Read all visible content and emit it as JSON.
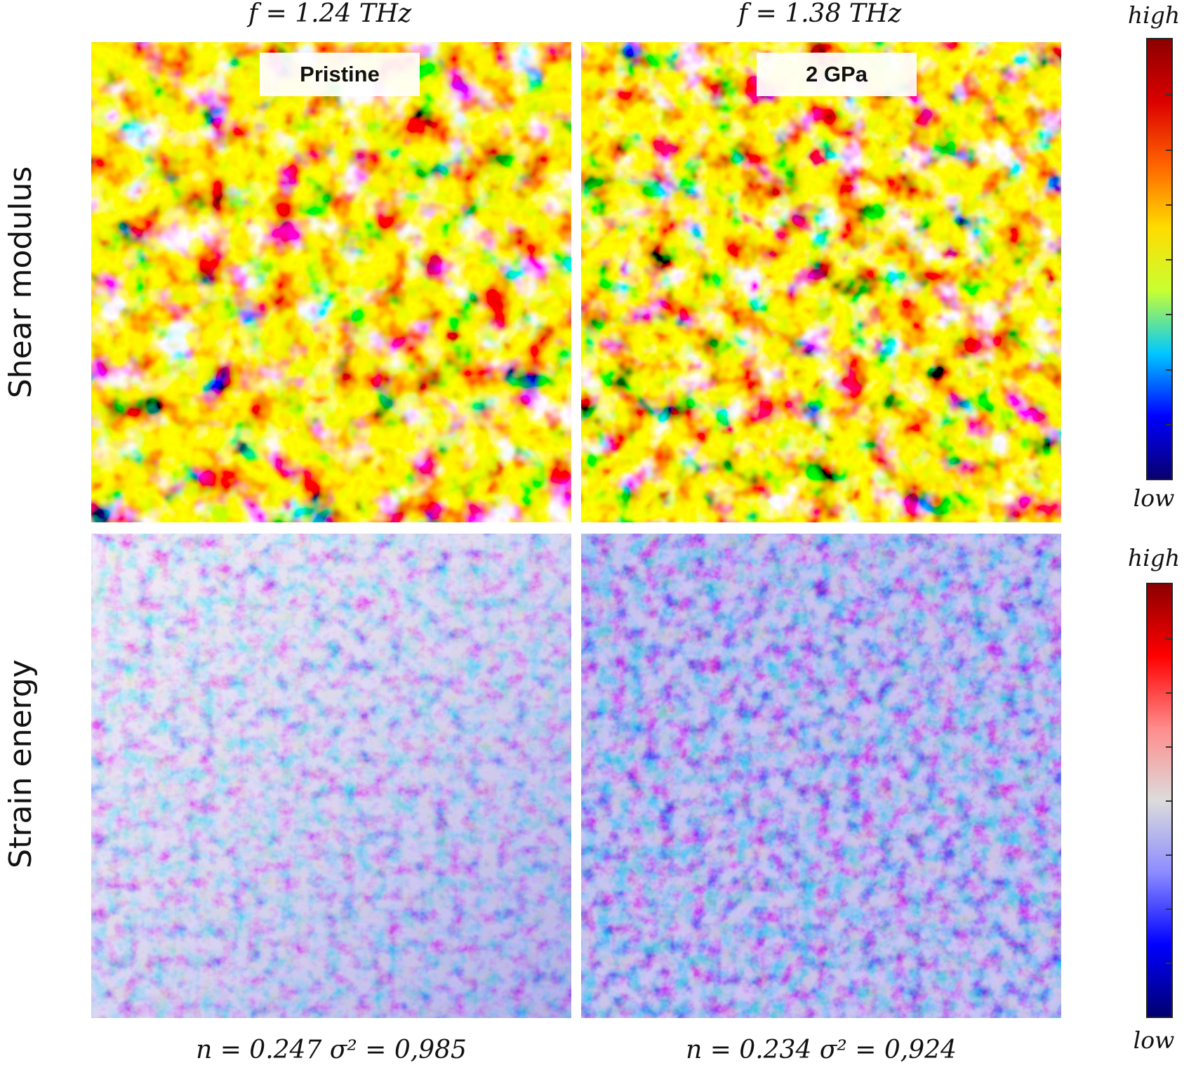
{
  "columns": [
    {
      "title": "f = 1.24 THz",
      "tag": "Pristine",
      "stats": "n = 0.247   σ² = 0,985"
    },
    {
      "title": "f = 1.38 THz",
      "tag": "2 GPa",
      "stats": "n = 0.234   σ² = 0,924"
    }
  ],
  "rows": [
    {
      "label": "Shear modulus"
    },
    {
      "label": "Strain energy"
    }
  ],
  "colorbars": [
    {
      "high": "high",
      "low": "low",
      "colormap": [
        "#08006e",
        "#0000ff",
        "#00c8ff",
        "#c8ff32",
        "#ffdc00",
        "#ff6400",
        "#dc0000",
        "#8c0000"
      ]
    },
    {
      "high": "high",
      "low": "low",
      "colormap": [
        "#00006e",
        "#0000ff",
        "#8c8cff",
        "#dcdcdc",
        "#ff8c8c",
        "#ff0000",
        "#8c0000"
      ]
    }
  ]
}
